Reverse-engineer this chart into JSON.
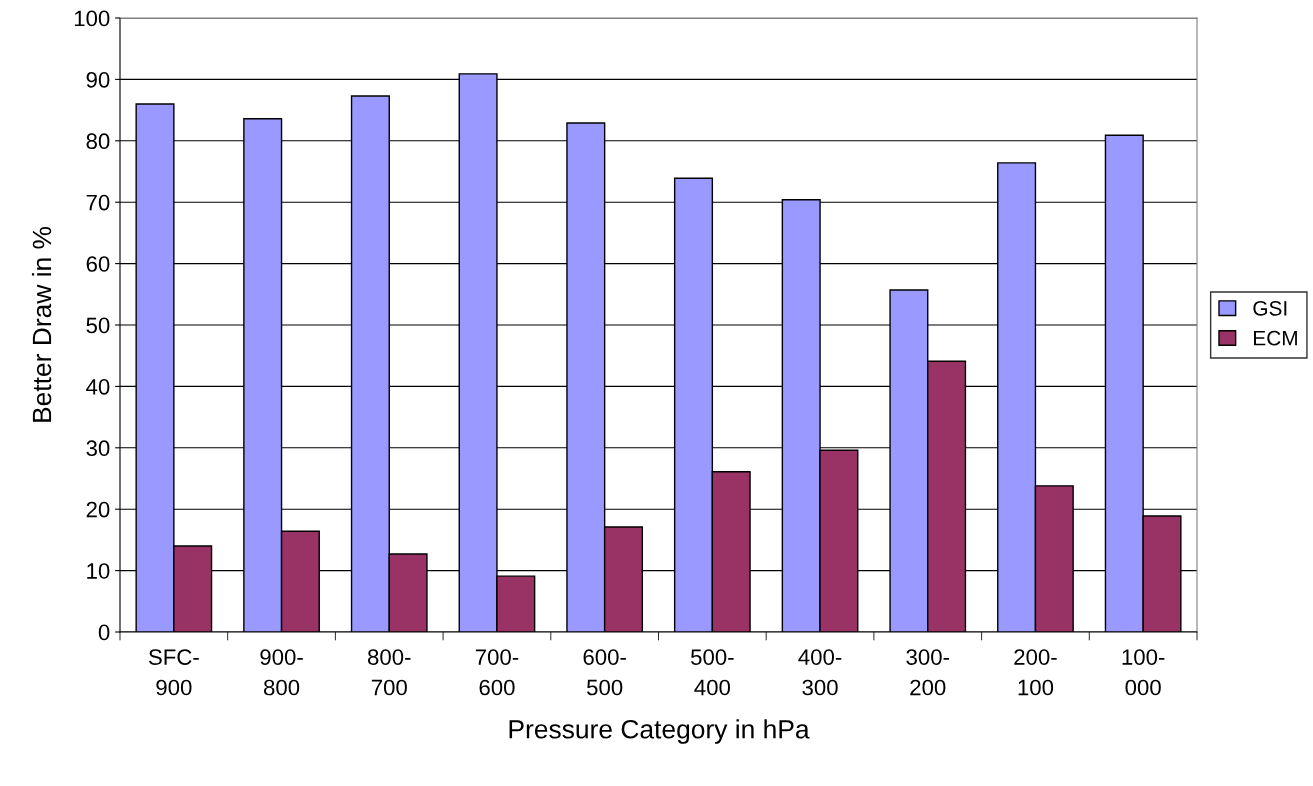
{
  "chart_data": {
    "type": "bar",
    "xlabel": "Pressure Category in hPa",
    "ylabel": "Better Draw in %",
    "categories": [
      "SFC-\n900",
      "900-\n800",
      "800-\n700",
      "700-\n600",
      "600-\n500",
      "500-\n400",
      "400-\n300",
      "300-\n200",
      "200-\n100",
      "100-\n000"
    ],
    "series": [
      {
        "name": "GSI",
        "color": "#9999ff",
        "values": [
          86.0,
          83.6,
          87.3,
          90.9,
          82.9,
          73.9,
          70.4,
          55.7,
          76.4,
          80.9
        ]
      },
      {
        "name": "ECM",
        "color": "#993366",
        "values": [
          14.0,
          16.4,
          12.7,
          9.1,
          17.1,
          26.1,
          29.6,
          44.1,
          23.8,
          18.9
        ]
      }
    ],
    "ylim": [
      0,
      100
    ],
    "yticks": [
      0,
      10,
      20,
      30,
      40,
      50,
      60,
      70,
      80,
      90,
      100
    ],
    "grid": "y",
    "legend": "right"
  }
}
